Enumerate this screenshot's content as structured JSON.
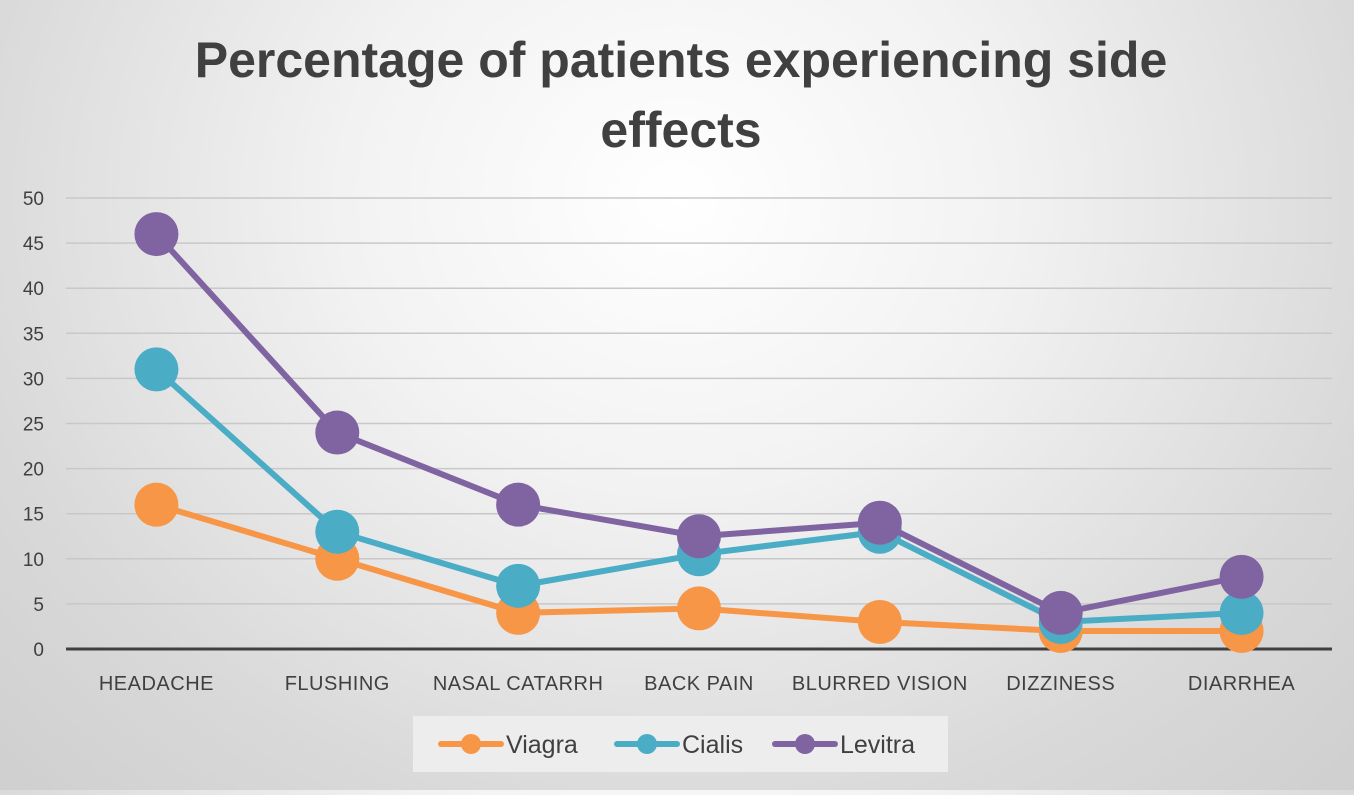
{
  "chart_data": {
    "type": "line",
    "title_lines": [
      "Percentage of patients experiencing side",
      "effects"
    ],
    "xlabel": "",
    "ylabel": "",
    "categories": [
      "HEADACHE",
      "FLUSHING",
      "NASAL CATARRH",
      "BACK PAIN",
      "BLURRED VISION",
      "DIZZINESS",
      "DIARRHEA"
    ],
    "ylim": [
      0,
      50
    ],
    "yticks": [
      "0",
      "5",
      "10",
      "15",
      "20",
      "25",
      "30",
      "35",
      "40",
      "45",
      "50"
    ],
    "grid": true,
    "legend_position": "bottom",
    "series": [
      {
        "name": "Viagra",
        "color": "#f79646",
        "values": [
          16,
          10,
          4,
          4.5,
          3,
          2,
          2
        ]
      },
      {
        "name": "Cialis",
        "color": "#4bacc6",
        "values": [
          31,
          13,
          7,
          10.5,
          13,
          3,
          4
        ]
      },
      {
        "name": "Levitra",
        "color": "#8064a2",
        "values": [
          46,
          24,
          16,
          12.5,
          14,
          4,
          8
        ]
      }
    ]
  }
}
